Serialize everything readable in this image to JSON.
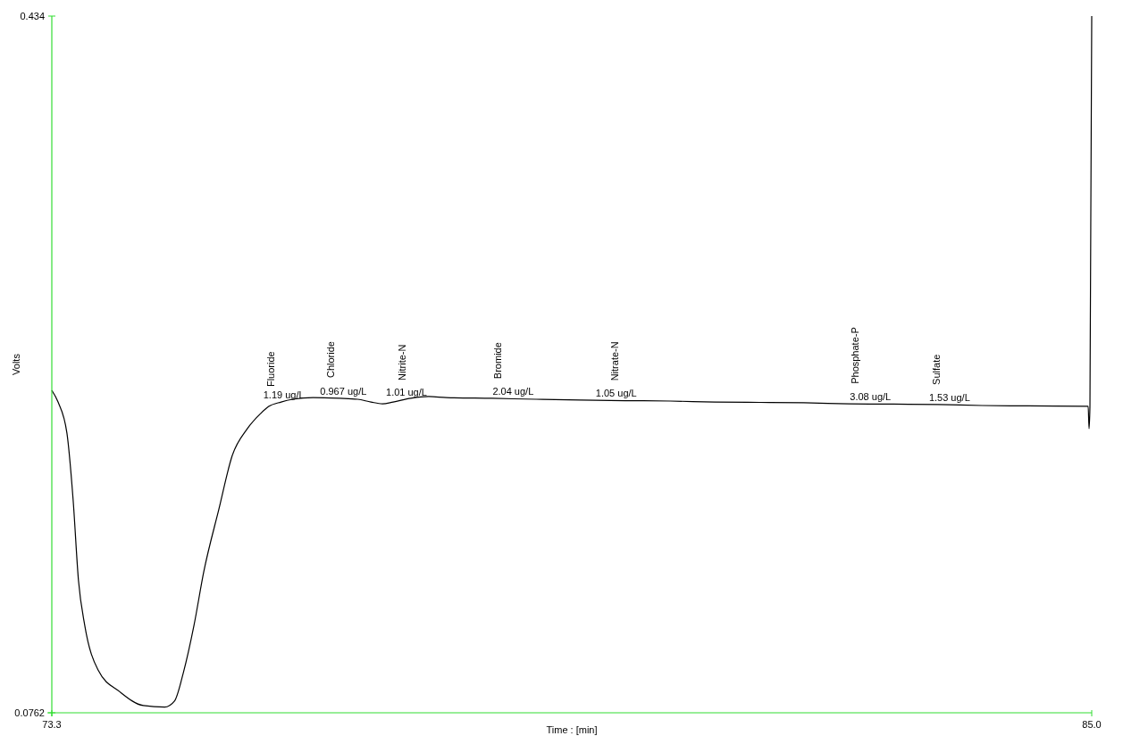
{
  "chart_data": {
    "type": "line",
    "xlabel": "Time : [min]",
    "ylabel": "Volts",
    "xlim": [
      73.3,
      85.0
    ],
    "ylim": [
      0.0762,
      0.434
    ],
    "xticks": [
      73.3,
      {
        "value": 85,
        "label": "85.0"
      }
    ],
    "yticks": [
      0.0762,
      0.434
    ],
    "grid": false,
    "line_style": "solid",
    "marker": "none",
    "series": [
      {
        "color": "#000000",
        "x": [
          73.3,
          73.37,
          73.47,
          73.54,
          73.6,
          73.67,
          73.82,
          74.07,
          74.33,
          74.57,
          74.68,
          74.78,
          74.9,
          75.01,
          75.18,
          75.33,
          75.5,
          75.65,
          75.74,
          75.88,
          76.01,
          76.24,
          76.54,
          76.74,
          76.89,
          77.02,
          77.14,
          77.34,
          77.54,
          77.74,
          78.25,
          78.75,
          79.25,
          79.75,
          80.26,
          80.76,
          81.26,
          81.76,
          82.27,
          82.77,
          83.27,
          83.77,
          84.28,
          84.96,
          84.97,
          84.98,
          85.0
        ],
        "values": [
          0.2418,
          0.2358,
          0.2198,
          0.1854,
          0.1441,
          0.1212,
          0.0982,
          0.0868,
          0.0799,
          0.0791,
          0.0822,
          0.0968,
          0.1212,
          0.1487,
          0.1808,
          0.2083,
          0.2221,
          0.2299,
          0.2335,
          0.2358,
          0.2372,
          0.2381,
          0.2377,
          0.2372,
          0.2358,
          0.2349,
          0.2358,
          0.2377,
          0.2386,
          0.2381,
          0.2377,
          0.2372,
          0.2368,
          0.2365,
          0.2363,
          0.2358,
          0.2356,
          0.2354,
          0.2349,
          0.2347,
          0.2345,
          0.234,
          0.2338,
          0.2336,
          0.2221,
          0.2336,
          0.434
        ]
      }
    ],
    "annotations": [
      {
        "text": "Fluoride",
        "x": 75.76,
        "y": 0.2335
      },
      {
        "text": "1.19 ug/L",
        "x": 75.91,
        "y": 0.2358
      },
      {
        "text": "Chloride",
        "x": 76.44,
        "y": 0.2381
      },
      {
        "text": "0.967 ug/L",
        "x": 76.58,
        "y": 0.2377
      },
      {
        "text": "Nitrite-N",
        "x": 77.24,
        "y": 0.2368
      },
      {
        "text": "1.01 ug/L",
        "x": 77.29,
        "y": 0.2372
      },
      {
        "text": "Bromide",
        "x": 78.32,
        "y": 0.2376
      },
      {
        "text": "2.04 ug/L",
        "x": 78.49,
        "y": 0.2375
      },
      {
        "text": "Nitrate-N",
        "x": 79.63,
        "y": 0.2366
      },
      {
        "text": "1.05 ug/L",
        "x": 79.65,
        "y": 0.2366
      },
      {
        "text": "Phosphate-P",
        "x": 82.34,
        "y": 0.235
      },
      {
        "text": "3.08 ug/L",
        "x": 82.51,
        "y": 0.2349
      },
      {
        "text": "Sulfate",
        "x": 83.25,
        "y": 0.2345
      },
      {
        "text": "1.53 ug/L",
        "x": 83.4,
        "y": 0.2344
      }
    ]
  }
}
